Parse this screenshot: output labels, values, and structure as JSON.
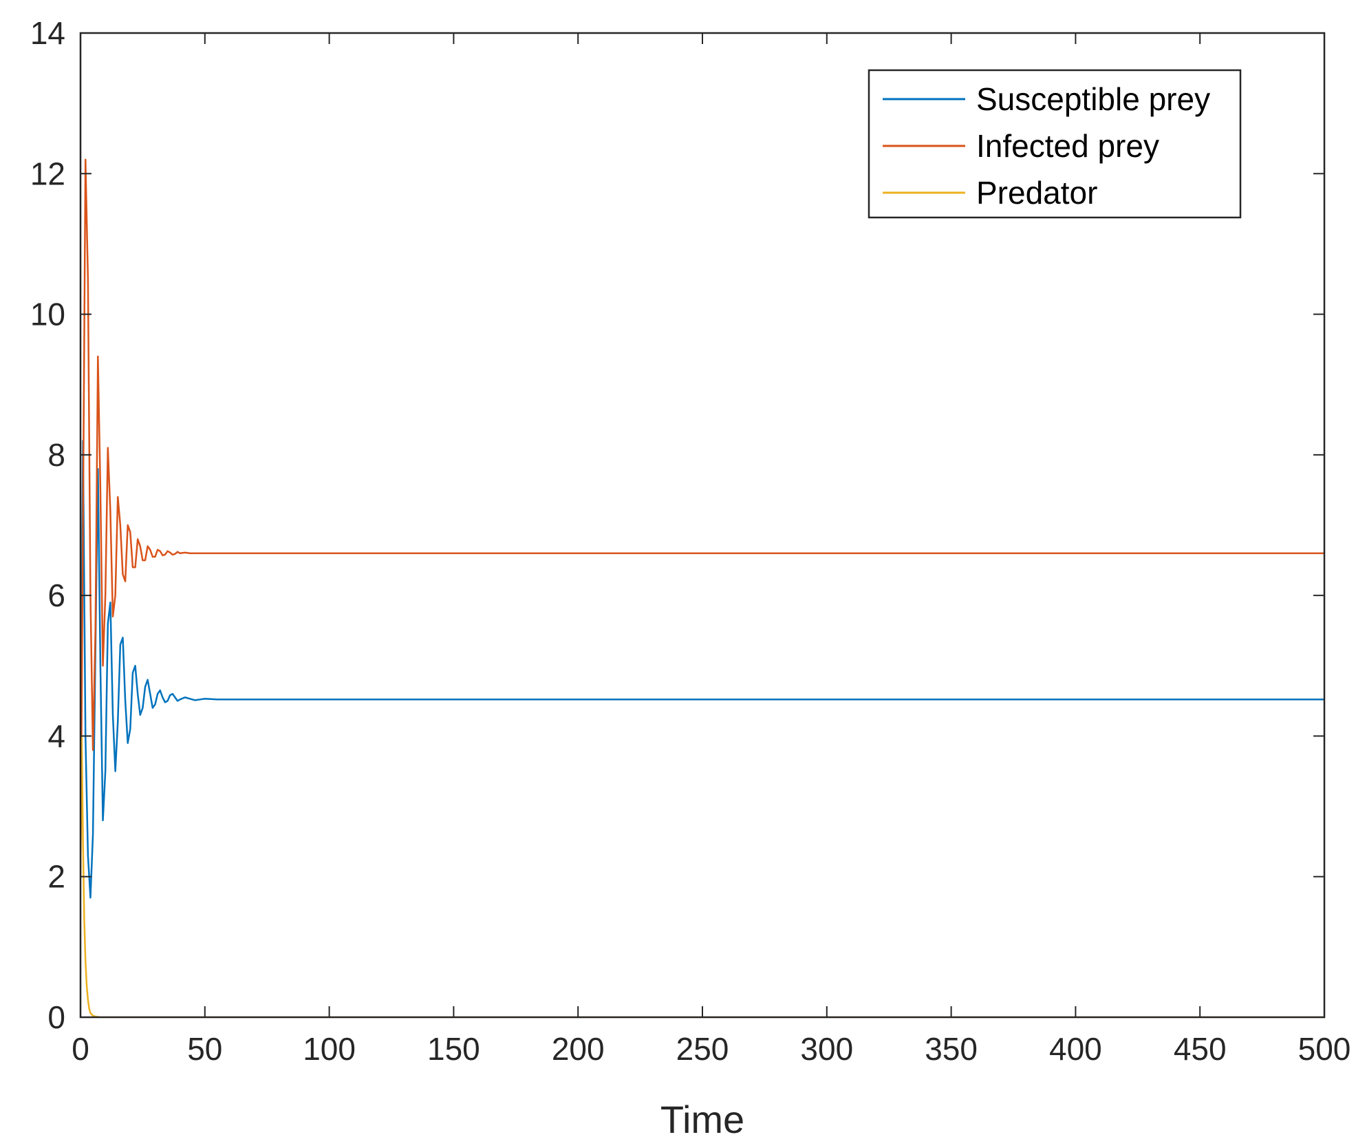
{
  "chart_data": {
    "type": "line",
    "title": "",
    "xlabel": "Time",
    "ylabel": "",
    "xlim": [
      0,
      500
    ],
    "ylim": [
      0,
      14
    ],
    "xticks": [
      0,
      50,
      100,
      150,
      200,
      250,
      300,
      350,
      400,
      450,
      500
    ],
    "yticks": [
      0,
      2,
      4,
      6,
      8,
      10,
      12,
      14
    ],
    "grid": false,
    "legend_position": "top-right",
    "series": [
      {
        "name": "Susceptible prey",
        "color": "#0072BD",
        "x": [
          0,
          1,
          2,
          3,
          4,
          5,
          6,
          7,
          8,
          9,
          10,
          11,
          12,
          13,
          14,
          15,
          16,
          17,
          18,
          19,
          20,
          21,
          22,
          23,
          24,
          25,
          26,
          27,
          28,
          29,
          30,
          31,
          32,
          33,
          34,
          35,
          36,
          37,
          38,
          39,
          40,
          42,
          44,
          46,
          48,
          50,
          55,
          60,
          500
        ],
        "y": [
          3.0,
          8.2,
          4.0,
          2.3,
          1.7,
          2.6,
          5.2,
          7.8,
          5.0,
          2.8,
          3.5,
          5.6,
          5.9,
          4.3,
          3.5,
          4.2,
          5.3,
          5.4,
          4.5,
          3.9,
          4.1,
          4.9,
          5.0,
          4.6,
          4.3,
          4.4,
          4.7,
          4.8,
          4.6,
          4.4,
          4.45,
          4.6,
          4.65,
          4.55,
          4.48,
          4.5,
          4.58,
          4.6,
          4.55,
          4.5,
          4.52,
          4.55,
          4.53,
          4.51,
          4.52,
          4.53,
          4.52,
          4.52,
          4.52
        ]
      },
      {
        "name": "Infected prey",
        "color": "#D95319",
        "x": [
          0,
          1,
          2,
          3,
          4,
          5,
          6,
          7,
          8,
          9,
          10,
          11,
          12,
          13,
          14,
          15,
          16,
          17,
          18,
          19,
          20,
          21,
          22,
          23,
          24,
          25,
          26,
          27,
          28,
          29,
          30,
          31,
          32,
          33,
          34,
          35,
          36,
          37,
          38,
          39,
          40,
          42,
          44,
          46,
          48,
          50,
          55,
          60,
          500
        ],
        "y": [
          2.0,
          7.0,
          12.2,
          10.5,
          6.0,
          3.8,
          5.5,
          9.4,
          7.5,
          5.0,
          6.0,
          8.1,
          7.2,
          5.7,
          6.0,
          7.4,
          7.0,
          6.3,
          6.2,
          7.0,
          6.9,
          6.4,
          6.4,
          6.8,
          6.7,
          6.5,
          6.5,
          6.7,
          6.65,
          6.55,
          6.55,
          6.65,
          6.63,
          6.57,
          6.58,
          6.63,
          6.61,
          6.58,
          6.59,
          6.62,
          6.6,
          6.61,
          6.6,
          6.6,
          6.6,
          6.6,
          6.6,
          6.6,
          6.6
        ]
      },
      {
        "name": "Predator",
        "color": "#EDB120",
        "x": [
          0,
          0.5,
          1,
          1.5,
          2,
          2.5,
          3,
          3.5,
          4,
          5,
          6,
          8,
          10,
          500
        ],
        "y": [
          2.0,
          4.0,
          2.5,
          1.4,
          0.8,
          0.45,
          0.25,
          0.12,
          0.06,
          0.02,
          0.01,
          0.0,
          0.0,
          0.0
        ]
      }
    ]
  }
}
